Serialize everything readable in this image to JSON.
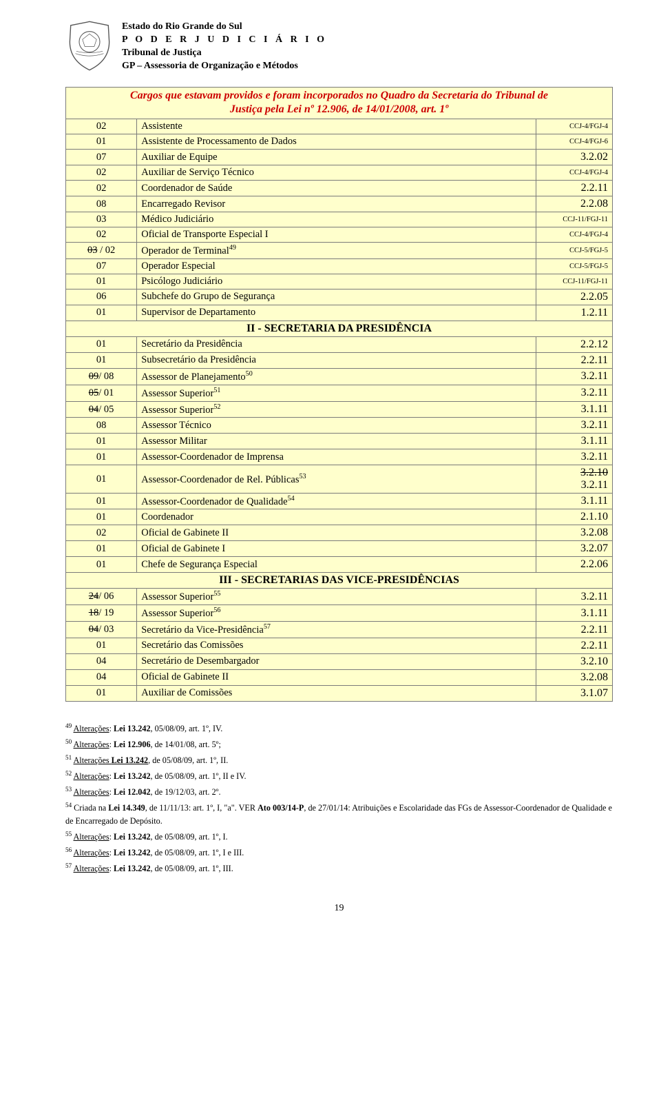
{
  "header": {
    "line1": "Estado do Rio Grande do Sul",
    "line2": "P O D E R   J U D I C I Á R I O",
    "line3": "Tribunal de Justiça",
    "line4": "GP – Assessoria de Organização e Métodos"
  },
  "title": {
    "l1": "Cargos que estavam providos e foram incorporados no Quadro da Secretaria do Tribunal de",
    "l2": "Justiça pela Lei nº 12.906, de 14/01/2008, art. 1º"
  },
  "rows1": [
    {
      "a": "02",
      "b": "Assistente",
      "c": "CCJ-4/FGJ-4",
      "ct": "tiny"
    },
    {
      "a": "01",
      "b": "Assistente de Processamento de Dados",
      "c": "CCJ-4/FGJ-6",
      "ct": "tiny"
    },
    {
      "a": "07",
      "b": "Auxiliar de Equipe",
      "c": "3.2.02",
      "ct": "big"
    },
    {
      "a": "02",
      "b": "Auxiliar de Serviço Técnico",
      "c": "CCJ-4/FGJ-4",
      "ct": "tiny"
    },
    {
      "a": "02",
      "b": "Coordenador de Saúde",
      "c": "2.2.11",
      "ct": "big"
    },
    {
      "a": "08",
      "b": "Encarregado Revisor",
      "c": "2.2.08",
      "ct": "big"
    },
    {
      "a": "03",
      "b": "Médico Judiciário",
      "c": "CCJ-11/FGJ-11",
      "ct": "tiny"
    },
    {
      "a": "02",
      "b": "Oficial de Transporte Especial I",
      "c": "CCJ-4/FGJ-4",
      "ct": "tiny"
    },
    {
      "a_html": "<span class=strike>03</span> / 02",
      "b": "Operador de Terminal",
      "sup": "49",
      "c": "CCJ-5/FGJ-5",
      "ct": "tiny"
    },
    {
      "a": "07",
      "b": "Operador Especial",
      "c": "CCJ-5/FGJ-5",
      "ct": "tiny"
    },
    {
      "a": "01",
      "b": "Psicólogo Judiciário",
      "c": "CCJ-11/FGJ-11",
      "ct": "tiny"
    },
    {
      "a": "06",
      "b": "Subchefe do Grupo de Segurança",
      "c": "2.2.05",
      "ct": "big"
    },
    {
      "a": "01",
      "b": "Supervisor de Departamento",
      "c": "1.2.11",
      "ct": "big"
    }
  ],
  "section2": "II - SECRETARIA DA PRESIDÊNCIA",
  "rows2": [
    {
      "a": "01",
      "b": "Secretário da Presidência",
      "c": "2.2.12",
      "ct": "big"
    },
    {
      "a": "01",
      "b": "Subsecretário da Presidência",
      "c": "2.2.11",
      "ct": "big"
    },
    {
      "a_html": "<span class=strike>09</span>/ 08",
      "b": "Assessor de Planejamento",
      "sup": "50",
      "c": "3.2.11",
      "ct": "big"
    },
    {
      "a_html": "<span class=strike>05</span>/ 01",
      "b": "Assessor Superior",
      "sup": "51",
      "c": "3.2.11",
      "ct": "big"
    },
    {
      "a_html": "<span class=strike>04</span>/ 05",
      "b": "Assessor Superior",
      "sup": "52",
      "c": "3.1.11",
      "ct": "big"
    },
    {
      "a": "08",
      "b": "Assessor Técnico",
      "c": "3.2.11",
      "ct": "big"
    },
    {
      "a": "01",
      "b": "Assessor Militar",
      "c": "3.1.11",
      "ct": "big"
    },
    {
      "a": "01",
      "b": "Assessor-Coordenador de Imprensa",
      "c": "3.2.11",
      "ct": "big"
    },
    {
      "a": "01",
      "b": "Assessor-Coordenador de Rel. Públicas",
      "sup": "53",
      "multi": [
        "3.2.10",
        "3.2.11"
      ]
    },
    {
      "a": "01",
      "b": "Assessor-Coordenador de Qualidade",
      "sup": "54",
      "c": "3.1.11",
      "ct": "big"
    },
    {
      "a": "01",
      "b": "Coordenador",
      "c": "2.1.10",
      "ct": "big"
    },
    {
      "a": "02",
      "b": "Oficial de Gabinete II",
      "c": "3.2.08",
      "ct": "big"
    },
    {
      "a": "01",
      "b": "Oficial de Gabinete I",
      "c": "3.2.07",
      "ct": "big"
    },
    {
      "a": "01",
      "b": "Chefe de Segurança Especial",
      "c": "2.2.06",
      "ct": "big"
    }
  ],
  "section3": "III - SECRETARIAS DAS VICE-PRESIDÊNCIAS",
  "rows3": [
    {
      "a_html": "<span class=strike>24</span>/ 06",
      "b": "Assessor Superior",
      "sup": "55",
      "c": "3.2.11",
      "ct": "big"
    },
    {
      "a_html": "<span class=strike>18</span>/ 19",
      "b": "Assessor Superior",
      "sup": "56",
      "c": "3.1.11",
      "ct": "big"
    },
    {
      "a_html": "<span class=strike>04</span>/ 03",
      "b": "Secretário da Vice-Presidência",
      "sup": "57",
      "c": "2.2.11",
      "ct": "big"
    },
    {
      "a": "01",
      "b": "Secretário das Comissões",
      "c": "2.2.11",
      "ct": "big"
    },
    {
      "a": "04",
      "b": "Secretário de Desembargador",
      "c": "3.2.10",
      "ct": "big"
    },
    {
      "a": "04",
      "b": "Oficial de Gabinete II",
      "c": "3.2.08",
      "ct": "big"
    },
    {
      "a": "01",
      "b": "Auxiliar de Comissões",
      "c": "3.1.07",
      "ct": "big"
    }
  ],
  "footnotes": [
    {
      "n": "49",
      "t": "<u>Alterações</u>: <b>Lei 13.242</b>, 05/08/09, art. 1º, IV."
    },
    {
      "n": "50",
      "t": "<u>Alterações</u>: <b>Lei 12.906</b>, de 14/01/08, art. 5º;"
    },
    {
      "n": "51",
      "t": "<u>Alterações <b>Lei 13.242</b></u>, de 05/08/09, art. 1º, II."
    },
    {
      "n": "52",
      "t": "<u>Alterações</u>: <b>Lei 13.242</b>, de 05/08/09, art. 1º, II e IV."
    },
    {
      "n": "53",
      "t": "<u>Alterações</u>: <b>Lei 12.042</b>, de 19/12/03, art. 2º."
    },
    {
      "n": "54",
      "t": "Criada na <b>Lei 14.349</b>, de 11/11/13: art. 1º, I, \"a\". VER <b>Ato 003/14-P</b>, de 27/01/14: Atribuições e Escolaridade das FGs de Assessor-Coordenador de Qualidade e de Encarregado de Depósito."
    },
    {
      "n": "55",
      "t": "<u>Alterações</u>: <b>Lei 13.242</b>, de 05/08/09, art. 1º, I."
    },
    {
      "n": "56",
      "t": "<u>Alterações</u>: <b>Lei 13.242</b>, de 05/08/09, art. 1º, I e III."
    },
    {
      "n": "57",
      "t": "<u>Alterações</u>: <b>Lei 13.242</b>, de 05/08/09, art. 1º, III."
    }
  ],
  "pageNumber": "19"
}
